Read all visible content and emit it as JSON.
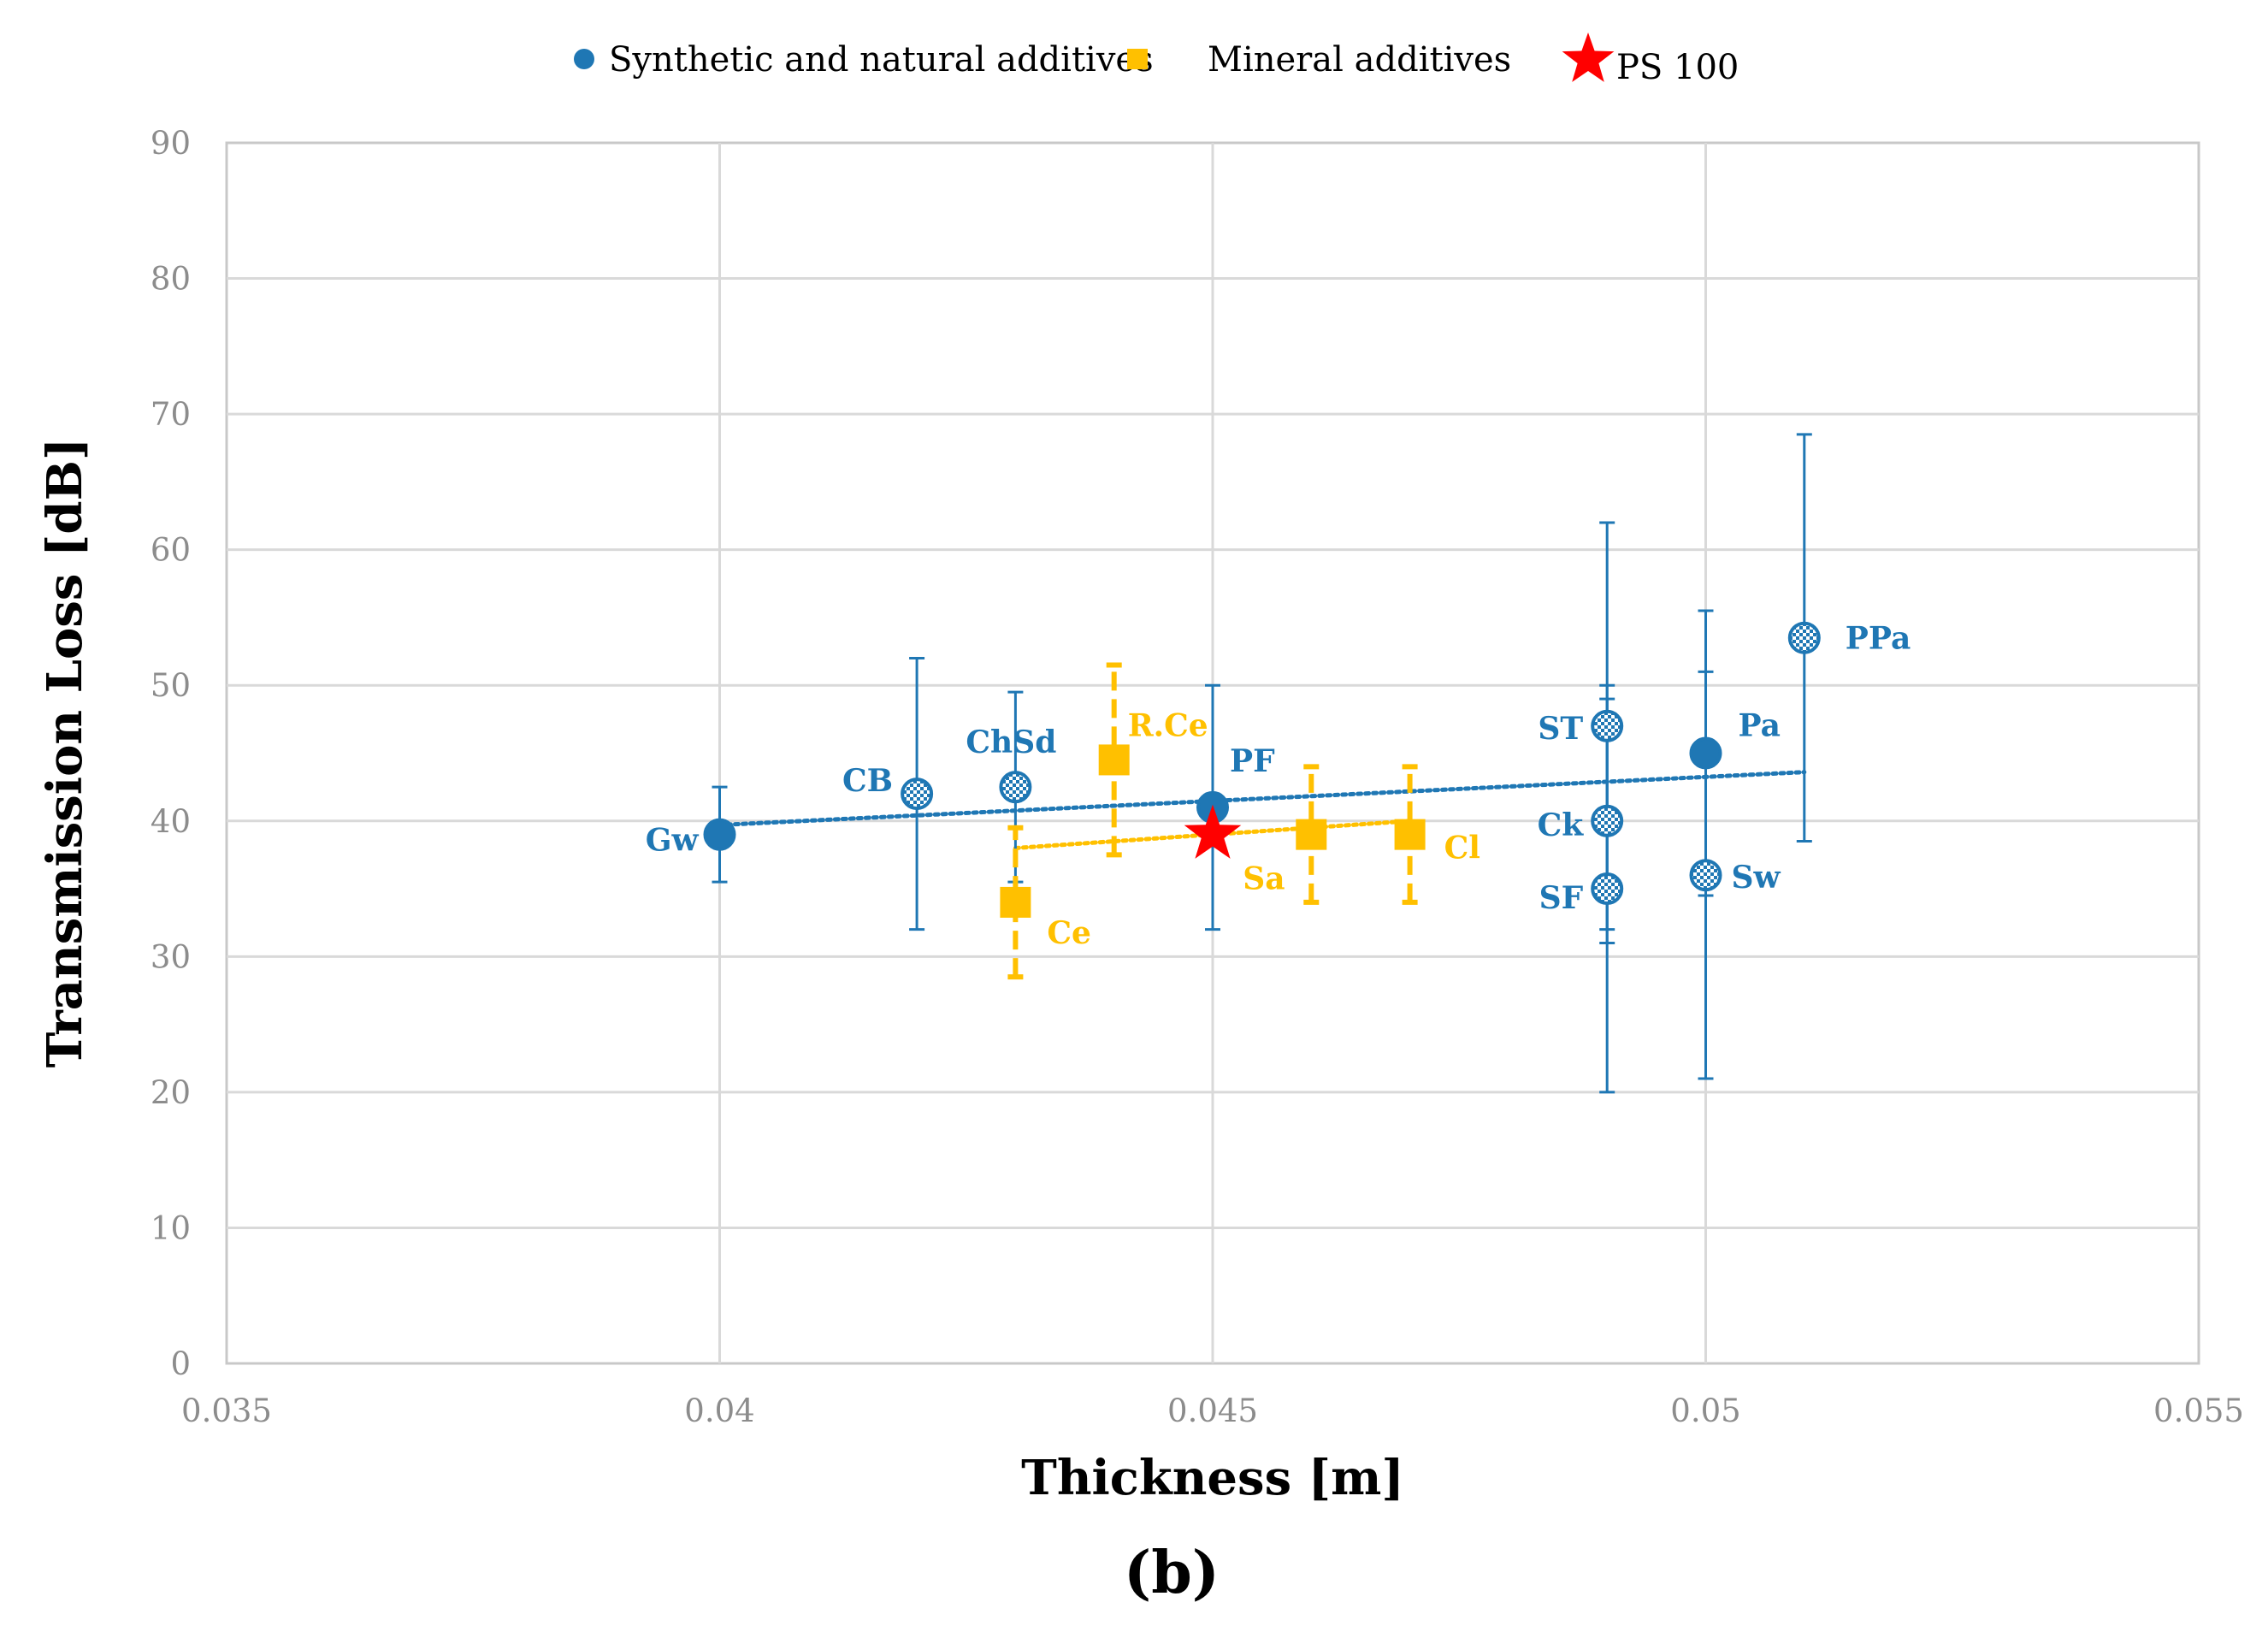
{
  "chart_data": {
    "type": "scatter",
    "panel_label": "(b)",
    "xlabel": "Thickness [m]",
    "ylabel": "Transmission Loss [dB]",
    "xlim": [
      0.035,
      0.055
    ],
    "ylim": [
      0,
      90
    ],
    "x_ticks": [
      "0.035",
      "0.04",
      "0.045",
      "0.05",
      "0.055"
    ],
    "y_ticks": [
      "0",
      "10",
      "20",
      "30",
      "40",
      "50",
      "60",
      "70",
      "80",
      "90"
    ],
    "grid": true,
    "legend_position": "top",
    "colors": {
      "synthetic": "#1f77b4",
      "mineral": "#ffc000",
      "reference": "#ff0000"
    },
    "series": [
      {
        "name": "Synthetic and natural additives",
        "marker": "circle",
        "points": [
          {
            "label": "Gw",
            "x": 0.04,
            "y": 39,
            "err_low": 35.5,
            "err_high": 42.5,
            "pattern": false
          },
          {
            "label": "CB",
            "x": 0.042,
            "y": 42,
            "err_low": 32,
            "err_high": 52,
            "pattern": true
          },
          {
            "label": "ChSd",
            "x": 0.043,
            "y": 42.5,
            "err_low": 35.5,
            "err_high": 49.5,
            "pattern": true
          },
          {
            "label": "PF",
            "x": 0.045,
            "y": 41,
            "err_low": 32,
            "err_high": 50,
            "pattern": false
          },
          {
            "label": "ST",
            "x": 0.049,
            "y": 47,
            "err_low": 32,
            "err_high": 62,
            "pattern": true
          },
          {
            "label": "Ck",
            "x": 0.049,
            "y": 40,
            "err_low": 31,
            "err_high": 49,
            "pattern": true
          },
          {
            "label": "SF",
            "x": 0.049,
            "y": 35,
            "err_low": 20,
            "err_high": 50,
            "pattern": true
          },
          {
            "label": "Pa",
            "x": 0.05,
            "y": 45,
            "err_low": 34.5,
            "err_high": 55.5,
            "pattern": false
          },
          {
            "label": "Sw",
            "x": 0.05,
            "y": 36,
            "err_low": 21,
            "err_high": 51,
            "pattern": true
          },
          {
            "label": "PPa",
            "x": 0.051,
            "y": 53.5,
            "err_low": 38.5,
            "err_high": 68.5,
            "pattern": true
          }
        ],
        "trendline": {
          "x": [
            0.04,
            0.051
          ],
          "y": [
            39.7,
            43.6
          ]
        }
      },
      {
        "name": "Mineral additives",
        "marker": "square",
        "points": [
          {
            "label": "Ce",
            "x": 0.043,
            "y": 34,
            "err_low": 28.5,
            "err_high": 39.5
          },
          {
            "label": "R.Ce",
            "x": 0.044,
            "y": 44.5,
            "err_low": 37.5,
            "err_high": 51.5
          },
          {
            "label": "Sa",
            "x": 0.046,
            "y": 39,
            "err_low": 34,
            "err_high": 44
          },
          {
            "label": "Cl",
            "x": 0.047,
            "y": 39,
            "err_low": 34,
            "err_high": 44
          }
        ],
        "trendline": {
          "x": [
            0.043,
            0.047
          ],
          "y": [
            38,
            40
          ]
        }
      },
      {
        "name": "PS 100",
        "marker": "star",
        "points": [
          {
            "label": "",
            "x": 0.045,
            "y": 39
          }
        ]
      }
    ]
  }
}
